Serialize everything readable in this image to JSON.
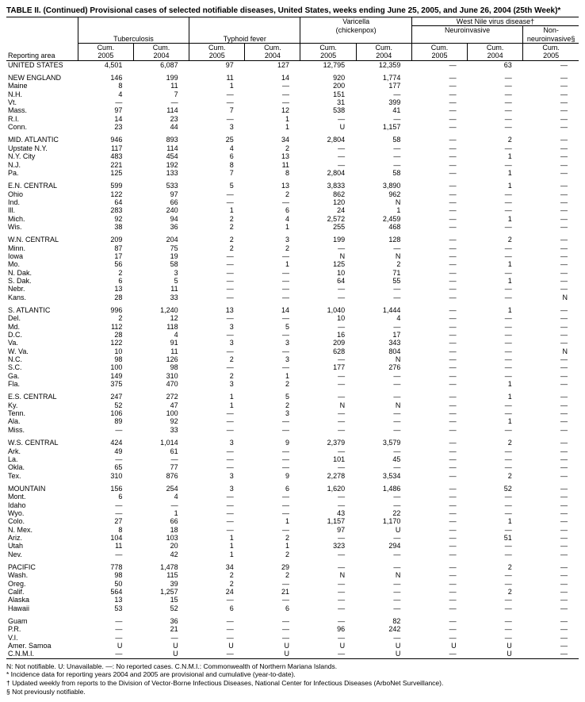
{
  "title": "TABLE II. (Continued) Provisional cases of selected notifiable diseases, United States, weeks ending June 25, 2005, and June 26, 2004 (25th Week)*",
  "headers": {
    "reporting_area": "Reporting area",
    "tuberculosis": "Tuberculosis",
    "typhoid": "Typhoid fever",
    "varicella_top": "Varicella",
    "varicella_sub": "(chickenpox)",
    "wnv": "West Nile virus disease†",
    "neuro": "Neuroinvasive",
    "nonneuro": "Non-neuroinvasive§",
    "cum": "Cum.",
    "y2005": "2005",
    "y2004": "2004"
  },
  "em": "—",
  "groups": [
    {
      "rows": [
        {
          "area": "UNITED STATES",
          "c": [
            "4,501",
            "6,087",
            "97",
            "127",
            "12,795",
            "12,359",
            "—",
            "63",
            "—"
          ]
        }
      ]
    },
    {
      "rows": [
        {
          "area": "NEW ENGLAND",
          "c": [
            "146",
            "199",
            "11",
            "14",
            "920",
            "1,774",
            "—",
            "—",
            "—"
          ]
        },
        {
          "area": "Maine",
          "c": [
            "8",
            "11",
            "1",
            "—",
            "200",
            "177",
            "—",
            "—",
            "—"
          ]
        },
        {
          "area": "N.H.",
          "c": [
            "4",
            "7",
            "—",
            "—",
            "151",
            "—",
            "—",
            "—",
            "—"
          ]
        },
        {
          "area": "Vt.",
          "c": [
            "—",
            "—",
            "—",
            "—",
            "31",
            "399",
            "—",
            "—",
            "—"
          ]
        },
        {
          "area": "Mass.",
          "c": [
            "97",
            "114",
            "7",
            "12",
            "538",
            "41",
            "—",
            "—",
            "—"
          ]
        },
        {
          "area": "R.I.",
          "c": [
            "14",
            "23",
            "—",
            "1",
            "—",
            "—",
            "—",
            "—",
            "—"
          ]
        },
        {
          "area": "Conn.",
          "c": [
            "23",
            "44",
            "3",
            "1",
            "U",
            "1,157",
            "—",
            "—",
            "—"
          ]
        }
      ]
    },
    {
      "rows": [
        {
          "area": "MID. ATLANTIC",
          "c": [
            "946",
            "893",
            "25",
            "34",
            "2,804",
            "58",
            "—",
            "2",
            "—"
          ]
        },
        {
          "area": "Upstate N.Y.",
          "c": [
            "117",
            "114",
            "4",
            "2",
            "—",
            "—",
            "—",
            "—",
            "—"
          ]
        },
        {
          "area": "N.Y. City",
          "c": [
            "483",
            "454",
            "6",
            "13",
            "—",
            "—",
            "—",
            "1",
            "—"
          ]
        },
        {
          "area": "N.J.",
          "c": [
            "221",
            "192",
            "8",
            "11",
            "—",
            "—",
            "—",
            "—",
            "—"
          ]
        },
        {
          "area": "Pa.",
          "c": [
            "125",
            "133",
            "7",
            "8",
            "2,804",
            "58",
            "—",
            "1",
            "—"
          ]
        }
      ]
    },
    {
      "rows": [
        {
          "area": "E.N. CENTRAL",
          "c": [
            "599",
            "533",
            "5",
            "13",
            "3,833",
            "3,890",
            "—",
            "1",
            "—"
          ]
        },
        {
          "area": "Ohio",
          "c": [
            "122",
            "97",
            "—",
            "2",
            "862",
            "962",
            "—",
            "—",
            "—"
          ]
        },
        {
          "area": "Ind.",
          "c": [
            "64",
            "66",
            "—",
            "—",
            "120",
            "N",
            "—",
            "—",
            "—"
          ]
        },
        {
          "area": "Ill.",
          "c": [
            "283",
            "240",
            "1",
            "6",
            "24",
            "1",
            "—",
            "—",
            "—"
          ]
        },
        {
          "area": "Mich.",
          "c": [
            "92",
            "94",
            "2",
            "4",
            "2,572",
            "2,459",
            "—",
            "1",
            "—"
          ]
        },
        {
          "area": "Wis.",
          "c": [
            "38",
            "36",
            "2",
            "1",
            "255",
            "468",
            "—",
            "—",
            "—"
          ]
        }
      ]
    },
    {
      "rows": [
        {
          "area": "W.N. CENTRAL",
          "c": [
            "209",
            "204",
            "2",
            "3",
            "199",
            "128",
            "—",
            "2",
            "—"
          ]
        },
        {
          "area": "Minn.",
          "c": [
            "87",
            "75",
            "2",
            "2",
            "—",
            "—",
            "—",
            "—",
            "—"
          ]
        },
        {
          "area": "Iowa",
          "c": [
            "17",
            "19",
            "—",
            "—",
            "N",
            "N",
            "—",
            "—",
            "—"
          ]
        },
        {
          "area": "Mo.",
          "c": [
            "56",
            "58",
            "—",
            "1",
            "125",
            "2",
            "—",
            "1",
            "—"
          ]
        },
        {
          "area": "N. Dak.",
          "c": [
            "2",
            "3",
            "—",
            "—",
            "10",
            "71",
            "—",
            "—",
            "—"
          ]
        },
        {
          "area": "S. Dak.",
          "c": [
            "6",
            "5",
            "—",
            "—",
            "64",
            "55",
            "—",
            "1",
            "—"
          ]
        },
        {
          "area": "Nebr.",
          "c": [
            "13",
            "11",
            "—",
            "—",
            "—",
            "—",
            "—",
            "—",
            "—"
          ]
        },
        {
          "area": "Kans.",
          "c": [
            "28",
            "33",
            "—",
            "—",
            "—",
            "—",
            "—",
            "—",
            "N"
          ]
        }
      ]
    },
    {
      "rows": [
        {
          "area": "S. ATLANTIC",
          "c": [
            "996",
            "1,240",
            "13",
            "14",
            "1,040",
            "1,444",
            "—",
            "1",
            "—"
          ]
        },
        {
          "area": "Del.",
          "c": [
            "2",
            "12",
            "—",
            "—",
            "10",
            "4",
            "—",
            "—",
            "—"
          ]
        },
        {
          "area": "Md.",
          "c": [
            "112",
            "118",
            "3",
            "5",
            "—",
            "—",
            "—",
            "—",
            "—"
          ]
        },
        {
          "area": "D.C.",
          "c": [
            "28",
            "4",
            "—",
            "—",
            "16",
            "17",
            "—",
            "—",
            "—"
          ]
        },
        {
          "area": "Va.",
          "c": [
            "122",
            "91",
            "3",
            "3",
            "209",
            "343",
            "—",
            "—",
            "—"
          ]
        },
        {
          "area": "W. Va.",
          "c": [
            "10",
            "11",
            "—",
            "—",
            "628",
            "804",
            "—",
            "—",
            "N"
          ]
        },
        {
          "area": "N.C.",
          "c": [
            "98",
            "126",
            "2",
            "3",
            "—",
            "N",
            "—",
            "—",
            "—"
          ]
        },
        {
          "area": "S.C.",
          "c": [
            "100",
            "98",
            "—",
            "—",
            "177",
            "276",
            "—",
            "—",
            "—"
          ]
        },
        {
          "area": "Ga.",
          "c": [
            "149",
            "310",
            "2",
            "1",
            "—",
            "—",
            "—",
            "—",
            "—"
          ]
        },
        {
          "area": "Fla.",
          "c": [
            "375",
            "470",
            "3",
            "2",
            "—",
            "—",
            "—",
            "1",
            "—"
          ]
        }
      ]
    },
    {
      "rows": [
        {
          "area": "E.S. CENTRAL",
          "c": [
            "247",
            "272",
            "1",
            "5",
            "—",
            "—",
            "—",
            "1",
            "—"
          ]
        },
        {
          "area": "Ky.",
          "c": [
            "52",
            "47",
            "1",
            "2",
            "N",
            "N",
            "—",
            "—",
            "—"
          ]
        },
        {
          "area": "Tenn.",
          "c": [
            "106",
            "100",
            "—",
            "3",
            "—",
            "—",
            "—",
            "—",
            "—"
          ]
        },
        {
          "area": "Ala.",
          "c": [
            "89",
            "92",
            "—",
            "—",
            "—",
            "—",
            "—",
            "1",
            "—"
          ]
        },
        {
          "area": "Miss.",
          "c": [
            "—",
            "33",
            "—",
            "—",
            "—",
            "—",
            "—",
            "—",
            "—"
          ]
        }
      ]
    },
    {
      "rows": [
        {
          "area": "W.S. CENTRAL",
          "c": [
            "424",
            "1,014",
            "3",
            "9",
            "2,379",
            "3,579",
            "—",
            "2",
            "—"
          ]
        },
        {
          "area": "Ark.",
          "c": [
            "49",
            "61",
            "—",
            "—",
            "—",
            "—",
            "—",
            "—",
            "—"
          ]
        },
        {
          "area": "La.",
          "c": [
            "—",
            "—",
            "—",
            "—",
            "101",
            "45",
            "—",
            "—",
            "—"
          ]
        },
        {
          "area": "Okla.",
          "c": [
            "65",
            "77",
            "—",
            "—",
            "—",
            "—",
            "—",
            "—",
            "—"
          ]
        },
        {
          "area": "Tex.",
          "c": [
            "310",
            "876",
            "3",
            "9",
            "2,278",
            "3,534",
            "—",
            "2",
            "—"
          ]
        }
      ]
    },
    {
      "rows": [
        {
          "area": "MOUNTAIN",
          "c": [
            "156",
            "254",
            "3",
            "6",
            "1,620",
            "1,486",
            "—",
            "52",
            "—"
          ]
        },
        {
          "area": "Mont.",
          "c": [
            "6",
            "4",
            "—",
            "—",
            "—",
            "—",
            "—",
            "—",
            "—"
          ]
        },
        {
          "area": "Idaho",
          "c": [
            "—",
            "—",
            "—",
            "—",
            "—",
            "—",
            "—",
            "—",
            "—"
          ]
        },
        {
          "area": "Wyo.",
          "c": [
            "—",
            "1",
            "—",
            "—",
            "43",
            "22",
            "—",
            "—",
            "—"
          ]
        },
        {
          "area": "Colo.",
          "c": [
            "27",
            "66",
            "—",
            "1",
            "1,157",
            "1,170",
            "—",
            "1",
            "—"
          ]
        },
        {
          "area": "N. Mex.",
          "c": [
            "8",
            "18",
            "—",
            "—",
            "97",
            "U",
            "—",
            "—",
            "—"
          ]
        },
        {
          "area": "Ariz.",
          "c": [
            "104",
            "103",
            "1",
            "2",
            "—",
            "—",
            "—",
            "51",
            "—"
          ]
        },
        {
          "area": "Utah",
          "c": [
            "11",
            "20",
            "1",
            "1",
            "323",
            "294",
            "—",
            "—",
            "—"
          ]
        },
        {
          "area": "Nev.",
          "c": [
            "—",
            "42",
            "1",
            "2",
            "—",
            "—",
            "—",
            "—",
            "—"
          ]
        }
      ]
    },
    {
      "rows": [
        {
          "area": "PACIFIC",
          "c": [
            "778",
            "1,478",
            "34",
            "29",
            "—",
            "—",
            "—",
            "2",
            "—"
          ]
        },
        {
          "area": "Wash.",
          "c": [
            "98",
            "115",
            "2",
            "2",
            "N",
            "N",
            "—",
            "—",
            "—"
          ]
        },
        {
          "area": "Oreg.",
          "c": [
            "50",
            "39",
            "2",
            "—",
            "—",
            "—",
            "—",
            "—",
            "—"
          ]
        },
        {
          "area": "Calif.",
          "c": [
            "564",
            "1,257",
            "24",
            "21",
            "—",
            "—",
            "—",
            "2",
            "—"
          ]
        },
        {
          "area": "Alaska",
          "c": [
            "13",
            "15",
            "—",
            "—",
            "—",
            "—",
            "—",
            "—",
            "—"
          ]
        },
        {
          "area": "Hawaii",
          "c": [
            "53",
            "52",
            "6",
            "6",
            "—",
            "—",
            "—",
            "—",
            "—"
          ]
        }
      ]
    },
    {
      "rows": [
        {
          "area": "Guam",
          "c": [
            "—",
            "36",
            "—",
            "—",
            "—",
            "82",
            "—",
            "—",
            "—"
          ]
        },
        {
          "area": "P.R.",
          "c": [
            "—",
            "21",
            "—",
            "—",
            "96",
            "242",
            "—",
            "—",
            "—"
          ]
        },
        {
          "area": "V.I.",
          "c": [
            "—",
            "—",
            "—",
            "—",
            "—",
            "—",
            "—",
            "—",
            "—"
          ]
        },
        {
          "area": "Amer. Samoa",
          "c": [
            "U",
            "U",
            "U",
            "U",
            "U",
            "U",
            "U",
            "U",
            "—"
          ]
        },
        {
          "area": "C.N.M.I.",
          "c": [
            "—",
            "U",
            "—",
            "U",
            "—",
            "U",
            "—",
            "U",
            "—"
          ]
        }
      ]
    }
  ],
  "footnotes": [
    "N: Not notifiable.        U: Unavailable.              —: No reported cases.                      C.N.M.I.: Commonwealth of Northern Mariana Islands.",
    "* Incidence data for reporting years 2004 and 2005 are provisional and cumulative (year-to-date).",
    "† Updated weekly from reports to the Division of Vector-Borne Infectious Diseases, National Center for Infectious Diseases (ArboNet Surveillance).",
    "§ Not previously notifiable."
  ]
}
